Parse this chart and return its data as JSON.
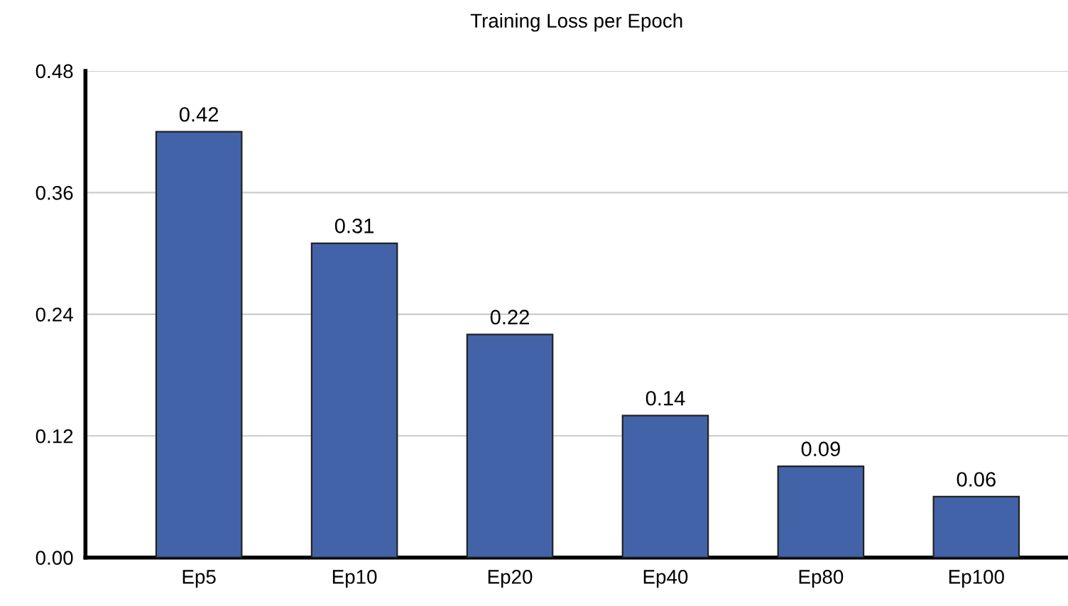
{
  "chart_data": {
    "type": "bar",
    "title": "Training Loss per Epoch",
    "categories": [
      "Ep5",
      "Ep10",
      "Ep20",
      "Ep40",
      "Ep80",
      "Ep100"
    ],
    "values": [
      0.42,
      0.31,
      0.22,
      0.14,
      0.09,
      0.06
    ],
    "color": "#4363a8",
    "ylim": [
      0,
      0.48
    ],
    "yticks": [
      {
        "value": 0,
        "label": "0.00"
      },
      {
        "value": 0.12,
        "label": "0.12"
      },
      {
        "value": 0.24,
        "label": "0.24"
      },
      {
        "value": 0.36,
        "label": "0.36"
      },
      {
        "value": 0.48,
        "label": "0.48"
      }
    ],
    "grid": "y",
    "data_labels": true
  }
}
